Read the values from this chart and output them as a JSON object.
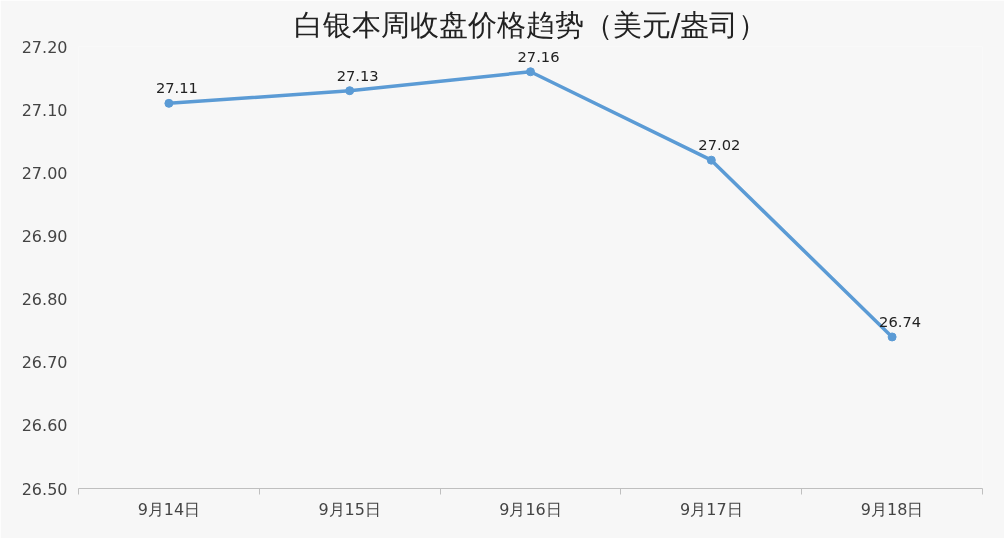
{
  "chart_data": {
    "type": "line",
    "title": "白银本周收盘价格趋势（美元/盎司）",
    "categories": [
      "9月14日",
      "9月15日",
      "9月16日",
      "9月17日",
      "9月18日"
    ],
    "series": [
      {
        "color": "#5b9bd5",
        "values": [
          27.11,
          27.13,
          27.16,
          27.02,
          26.74
        ]
      }
    ],
    "ylim": [
      26.5,
      27.2
    ],
    "yticks": [
      {
        "value": 26.5,
        "label": "26.50"
      },
      {
        "value": 26.6,
        "label": "26.60"
      },
      {
        "value": 26.7,
        "label": "26.70"
      },
      {
        "value": 26.8,
        "label": "26.80"
      },
      {
        "value": 26.9,
        "label": "26.90"
      },
      {
        "value": 27.0,
        "label": "27.00"
      },
      {
        "value": 27.1,
        "label": "27.10"
      },
      {
        "value": 27.2,
        "label": "27.20"
      }
    ],
    "marker": "circle",
    "data_labels": true
  }
}
